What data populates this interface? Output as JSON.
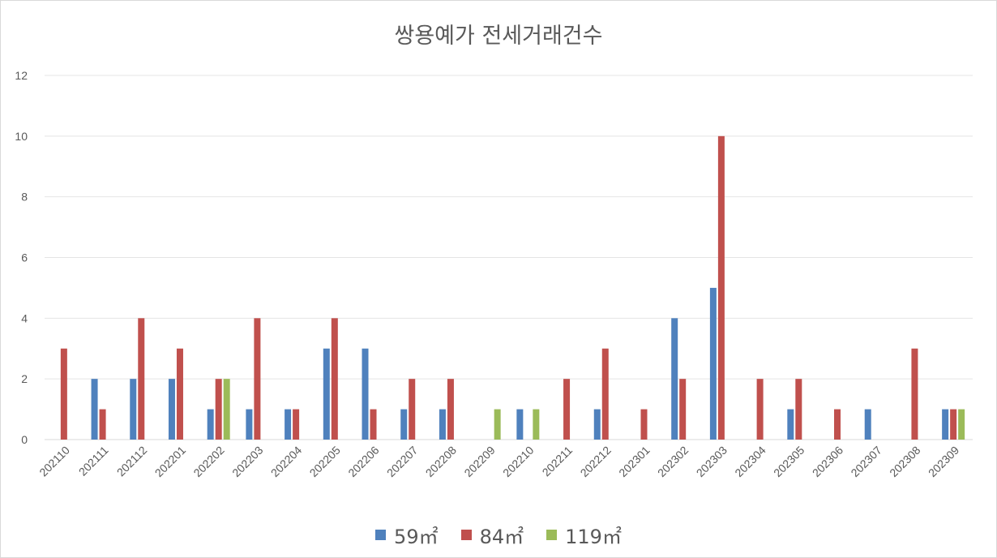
{
  "chart_data": {
    "type": "bar",
    "title": "쌍용예가 전세거래건수",
    "xlabel": "",
    "ylabel": "",
    "ylim": [
      0,
      12
    ],
    "yticks": [
      0,
      2,
      4,
      6,
      8,
      10,
      12
    ],
    "grid": true,
    "legend_position": "bottom",
    "categories": [
      "202110",
      "202111",
      "202112",
      "202201",
      "202202",
      "202203",
      "202204",
      "202205",
      "202206",
      "202207",
      "202208",
      "202209",
      "202210",
      "202211",
      "202212",
      "202301",
      "202302",
      "202303",
      "202304",
      "202305",
      "202306",
      "202307",
      "202308",
      "202309"
    ],
    "series": [
      {
        "name": "59㎡",
        "color": "#4F81BD",
        "values": [
          0,
          2,
          2,
          2,
          1,
          1,
          1,
          3,
          3,
          1,
          1,
          0,
          1,
          0,
          1,
          0,
          4,
          5,
          0,
          1,
          0,
          1,
          0,
          1
        ]
      },
      {
        "name": "84㎡",
        "color": "#C0504D",
        "values": [
          3,
          1,
          4,
          3,
          2,
          4,
          1,
          4,
          1,
          2,
          2,
          0,
          0,
          2,
          3,
          1,
          2,
          10,
          2,
          2,
          1,
          0,
          3,
          1
        ]
      },
      {
        "name": "119㎡",
        "color": "#9BBB59",
        "values": [
          0,
          0,
          0,
          0,
          2,
          0,
          0,
          0,
          0,
          0,
          0,
          1,
          1,
          0,
          0,
          0,
          0,
          0,
          0,
          0,
          0,
          0,
          0,
          1
        ]
      }
    ]
  }
}
